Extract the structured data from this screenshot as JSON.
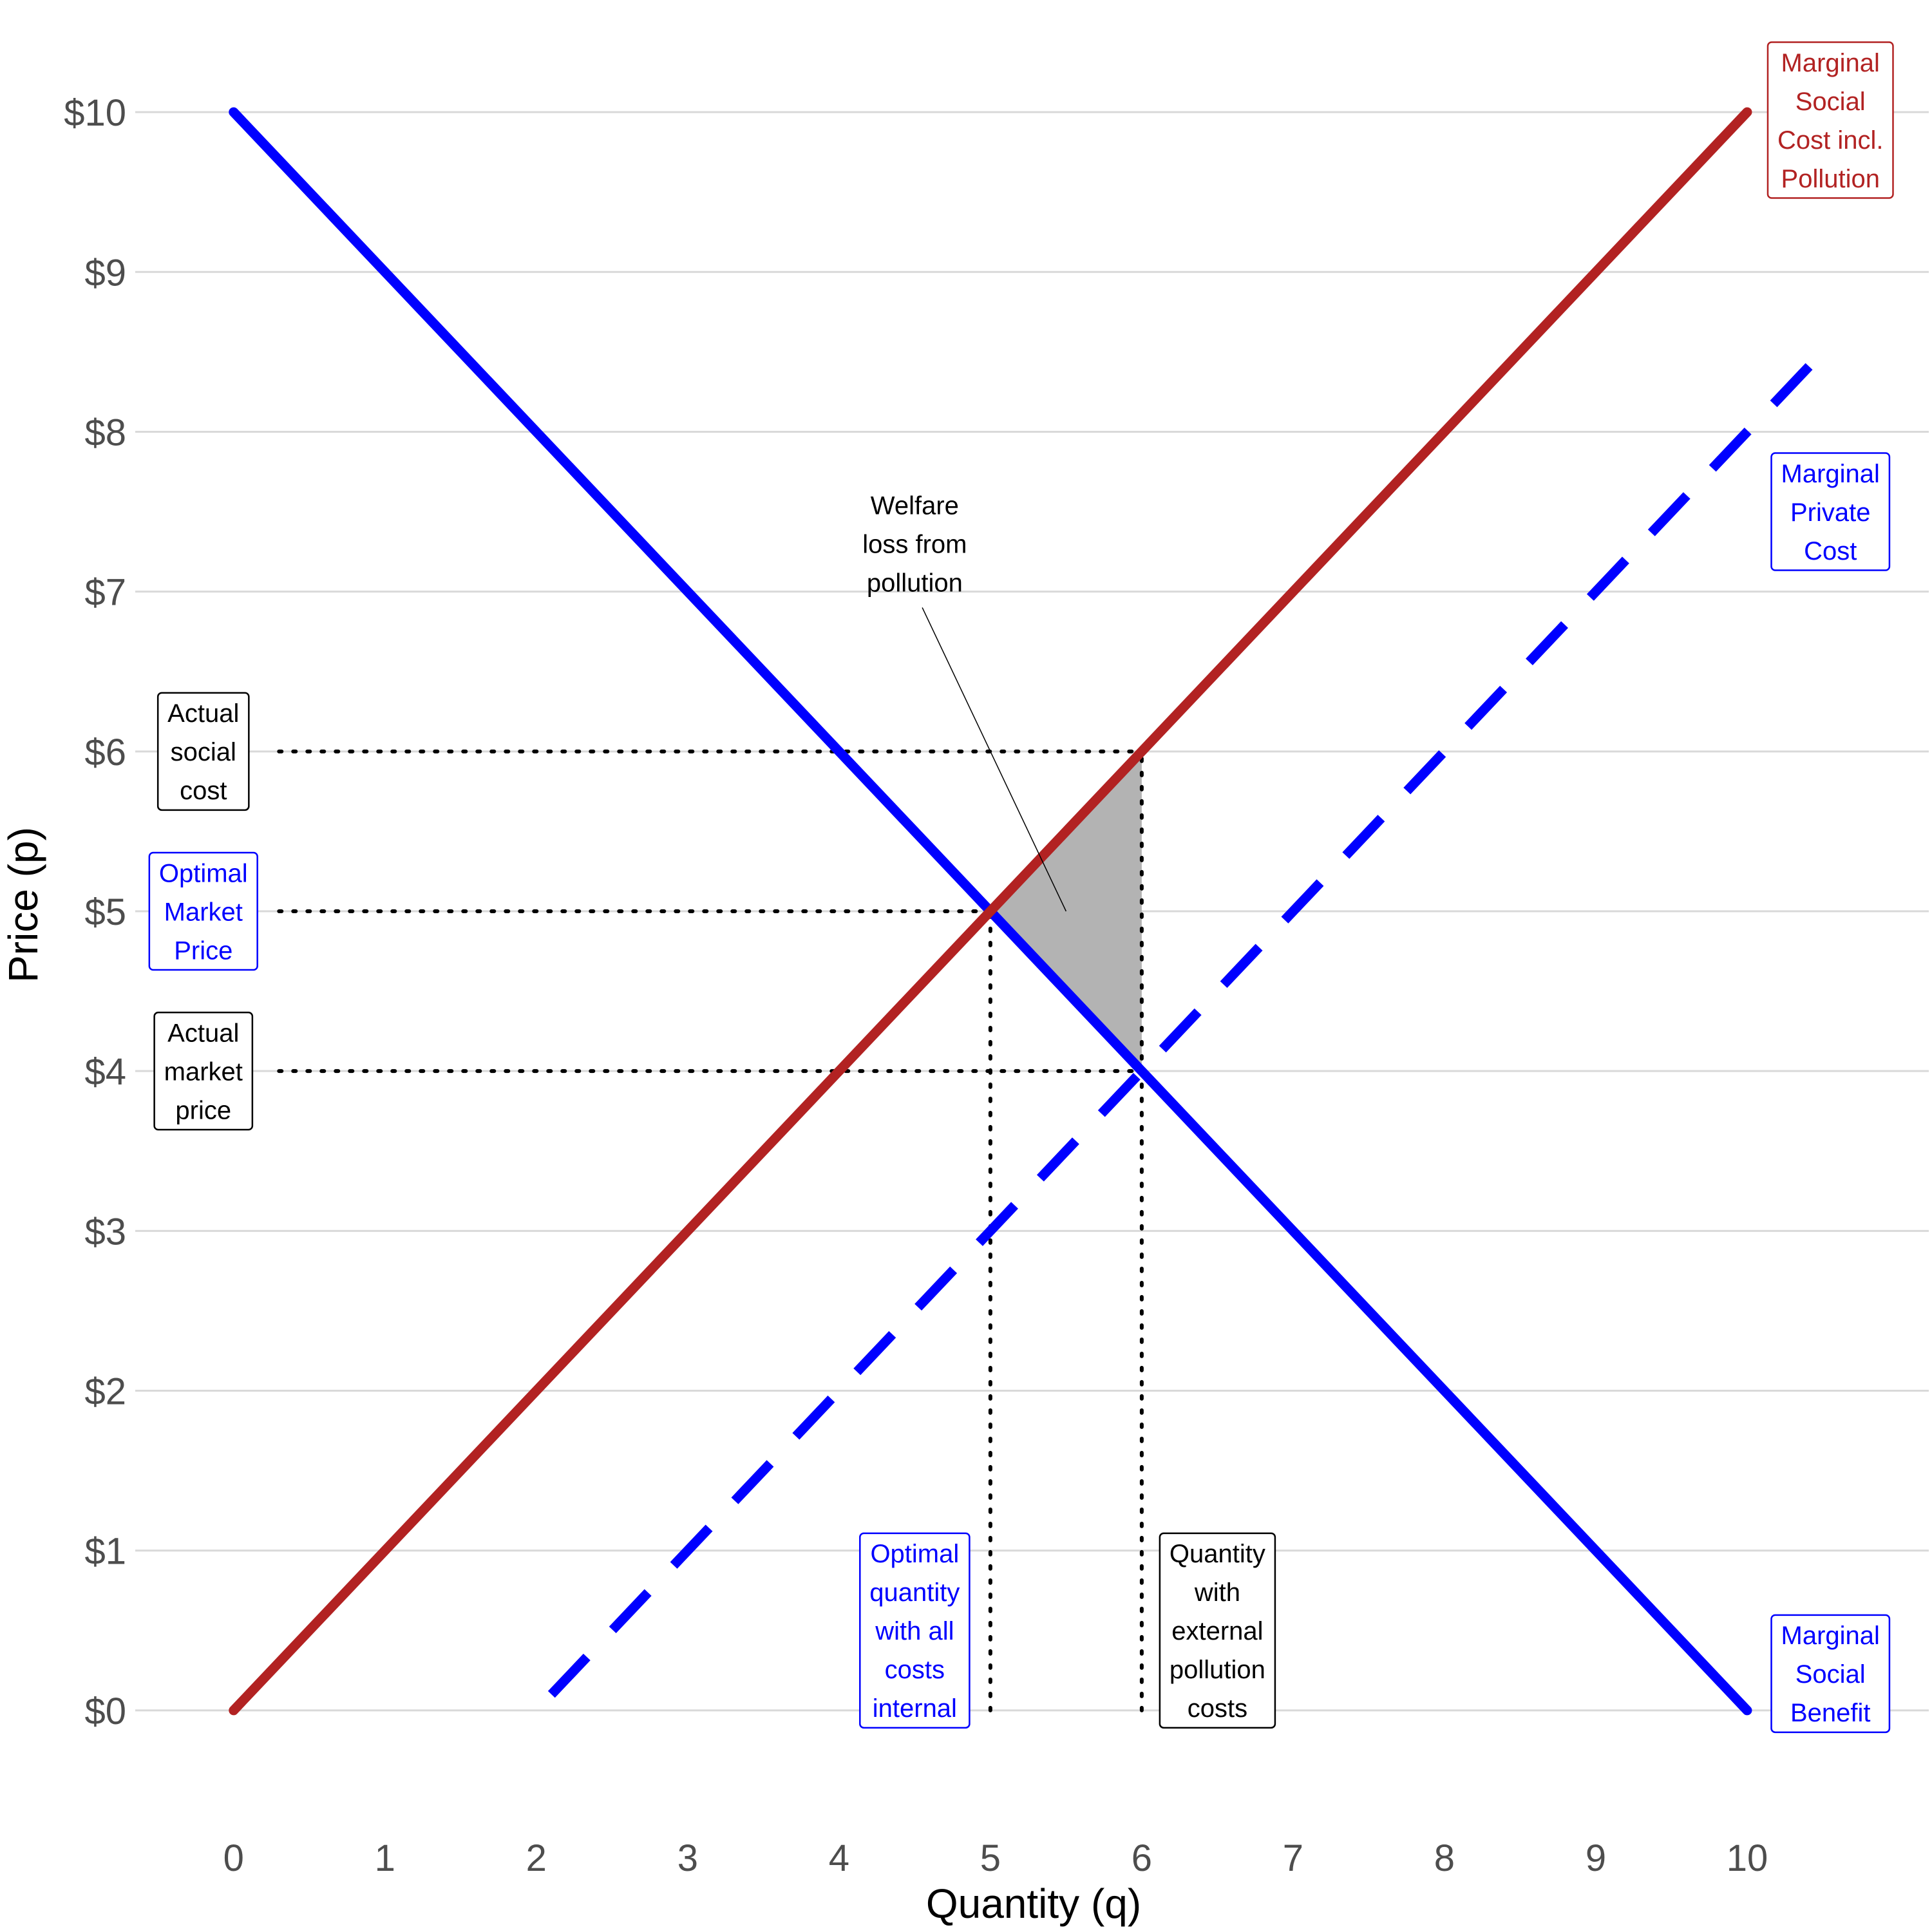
{
  "chart_data": {
    "type": "line",
    "xlabel": "Quantity (q)",
    "ylabel": "Price (p)",
    "xlim": [
      -0.65,
      11.2
    ],
    "ylim": [
      -0.5,
      10.5
    ],
    "x_ticks": [
      0,
      1,
      2,
      3,
      4,
      5,
      6,
      7,
      8,
      9,
      10
    ],
    "y_ticks": [
      0,
      1,
      2,
      3,
      4,
      5,
      6,
      7,
      8,
      9,
      10
    ],
    "x_tick_labels": [
      "0",
      "1",
      "2",
      "3",
      "4",
      "5",
      "6",
      "7",
      "8",
      "9",
      "10"
    ],
    "y_tick_labels": [
      "$0",
      "$1",
      "$2",
      "$3",
      "$4",
      "$5",
      "$6",
      "$7",
      "$8",
      "$9",
      "$10"
    ],
    "grid": "horizontal major gridlines only",
    "series": [
      {
        "name": "Marginal Social Benefit",
        "color": "#0000ff",
        "style": "solid",
        "points": [
          [
            0,
            10
          ],
          [
            10,
            0
          ]
        ]
      },
      {
        "name": "Marginal Social Cost incl. Pollution",
        "color": "#b22222",
        "style": "solid",
        "points": [
          [
            0,
            0
          ],
          [
            10,
            10
          ]
        ]
      },
      {
        "name": "Marginal Private Cost",
        "color": "#0000ff",
        "style": "dashed",
        "points": [
          [
            2.1,
            0.1
          ],
          [
            10.5,
            8.5
          ]
        ]
      }
    ],
    "welfare_loss_region": {
      "color": "#b3b3b3",
      "points": [
        [
          5,
          5
        ],
        [
          6,
          6
        ],
        [
          6,
          4
        ]
      ]
    },
    "reference_lines": [
      {
        "from": [
          0.3,
          6
        ],
        "to": [
          6,
          6
        ]
      },
      {
        "from": [
          0.3,
          5
        ],
        "to": [
          5,
          5
        ]
      },
      {
        "from": [
          0.3,
          4
        ],
        "to": [
          6,
          4
        ]
      },
      {
        "from": [
          5,
          0
        ],
        "to": [
          5,
          5
        ]
      },
      {
        "from": [
          6,
          0
        ],
        "to": [
          6,
          6
        ]
      }
    ],
    "annotations": [
      {
        "name": "label-msc",
        "lines": [
          "Marginal",
          "Social",
          "Cost incl.",
          "Pollution"
        ],
        "x": 10.55,
        "y": 9.95,
        "color": "#b22222",
        "boxed": true
      },
      {
        "name": "label-mpc",
        "lines": [
          "Marginal",
          "Private",
          "Cost"
        ],
        "x": 10.55,
        "y": 7.5,
        "color": "#0000ff",
        "boxed": true
      },
      {
        "name": "label-msb",
        "lines": [
          "Marginal",
          "Social",
          "Benefit"
        ],
        "x": 10.55,
        "y": 0.23,
        "color": "#0000ff",
        "boxed": true
      },
      {
        "name": "label-actual-social-cost",
        "lines": [
          "Actual",
          "social",
          "cost"
        ],
        "x": -0.2,
        "y": 6,
        "color": "#000000",
        "boxed": true
      },
      {
        "name": "label-optimal-market-price",
        "lines": [
          "Optimal",
          "Market",
          "Price"
        ],
        "x": -0.2,
        "y": 5,
        "color": "#0000ff",
        "boxed": true
      },
      {
        "name": "label-actual-market-price",
        "lines": [
          "Actual",
          "market",
          "price"
        ],
        "x": -0.2,
        "y": 4,
        "color": "#000000",
        "boxed": true
      },
      {
        "name": "label-optimal-quantity",
        "lines": [
          "Optimal",
          "quantity",
          "with all",
          "costs",
          "internal"
        ],
        "x": 4.5,
        "y": 0.5,
        "color": "#0000ff",
        "boxed": true
      },
      {
        "name": "label-quantity-external",
        "lines": [
          "Quantity",
          "with",
          "external",
          "pollution",
          "costs"
        ],
        "x": 6.5,
        "y": 0.5,
        "color": "#000000",
        "boxed": true
      },
      {
        "name": "label-welfare-loss",
        "lines": [
          "Welfare",
          "loss from",
          "pollution"
        ],
        "x": 4.5,
        "y": 7.3,
        "color": "#000000",
        "boxed": false
      }
    ],
    "leader_line": {
      "from": [
        4.55,
        6.9
      ],
      "to": [
        5.5,
        5.0
      ]
    }
  }
}
